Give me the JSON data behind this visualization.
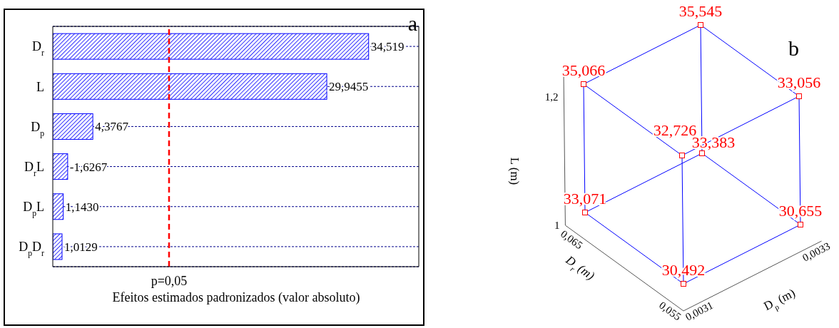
{
  "chart_data": [
    {
      "type": "bar",
      "orientation": "horizontal",
      "categories": [
        "D$_{r}$",
        "L",
        "D$_{p}$",
        "D$_{r}$L",
        "D$_{p}$L",
        "D$_{p}$D$_{r}$"
      ],
      "values": [
        34.519,
        29.9455,
        4.3767,
        1.6267,
        1.143,
        1.0129
      ],
      "value_labels": [
        "34,519",
        "29,9455",
        "4,3767",
        "-1,6267",
        "1,1430",
        "1,0129"
      ],
      "color": "#0000ff",
      "xlim": [
        0,
        40
      ],
      "grid": "y",
      "xlabel": "Efeitos estimados padronizados (valor absoluto)",
      "ref_lines": [
        {
          "axis": "x",
          "value": 12.706,
          "color": "#ff0000",
          "line_style": "dashed"
        }
      ],
      "annotations": [
        "a",
        "p=0,05"
      ]
    },
    {
      "type": "other",
      "xlabel": "D$_{p}$ (m)",
      "ylabel": "D$_{r}$ (m)",
      "y2label": "L (m)",
      "color": "#0000ff",
      "annotations": [
        "b",
        "30,492",
        "30,655",
        "33,071",
        "33,383",
        "32,726",
        "33,056",
        "35,066",
        "35,545",
        "0,0031",
        "0,0033",
        "0,055",
        "0,065",
        "1",
        "1,2"
      ]
    }
  ]
}
